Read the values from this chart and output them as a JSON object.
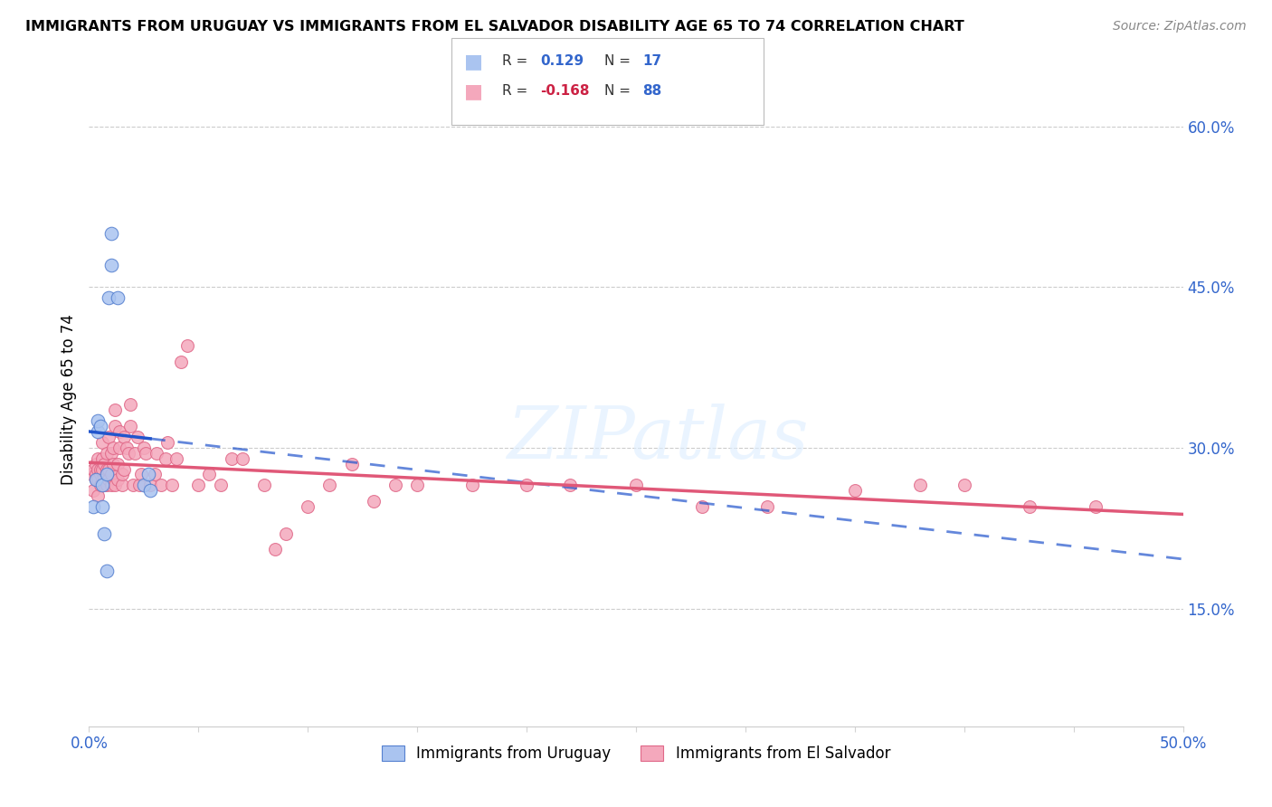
{
  "title": "IMMIGRANTS FROM URUGUAY VS IMMIGRANTS FROM EL SALVADOR DISABILITY AGE 65 TO 74 CORRELATION CHART",
  "source": "Source: ZipAtlas.com",
  "ylabel": "Disability Age 65 to 74",
  "xlim": [
    0.0,
    0.5
  ],
  "ylim": [
    0.04,
    0.65
  ],
  "xtick_vals": [
    0.0,
    0.05,
    0.1,
    0.15,
    0.2,
    0.25,
    0.3,
    0.35,
    0.4,
    0.45,
    0.5
  ],
  "xtick_labels": [
    "0.0%",
    "",
    "",
    "",
    "",
    "",
    "",
    "",
    "",
    "",
    "50.0%"
  ],
  "ytick_vals": [
    0.15,
    0.3,
    0.45,
    0.6
  ],
  "ytick_labels": [
    "15.0%",
    "30.0%",
    "45.0%",
    "60.0%"
  ],
  "uruguay_color": "#aac4f0",
  "el_salvador_color": "#f4a8bc",
  "uruguay_edge_color": "#5580d0",
  "el_salvador_edge_color": "#e06888",
  "uruguay_line_color": "#2255cc",
  "el_salvador_line_color": "#e05878",
  "watermark": "ZIPatlas",
  "legend_R_uruguay": "0.129",
  "legend_N_uruguay": "17",
  "legend_R_el_salvador": "-0.168",
  "legend_N_el_salvador": "88",
  "uruguay_x": [
    0.002,
    0.003,
    0.004,
    0.004,
    0.005,
    0.006,
    0.006,
    0.007,
    0.008,
    0.008,
    0.009,
    0.01,
    0.01,
    0.013,
    0.025,
    0.027,
    0.028
  ],
  "uruguay_y": [
    0.245,
    0.27,
    0.315,
    0.325,
    0.32,
    0.245,
    0.265,
    0.22,
    0.185,
    0.275,
    0.44,
    0.47,
    0.5,
    0.44,
    0.265,
    0.275,
    0.26
  ],
  "el_salvador_x": [
    0.001,
    0.002,
    0.002,
    0.003,
    0.003,
    0.003,
    0.004,
    0.004,
    0.004,
    0.004,
    0.005,
    0.005,
    0.005,
    0.006,
    0.006,
    0.006,
    0.006,
    0.007,
    0.007,
    0.007,
    0.008,
    0.008,
    0.008,
    0.009,
    0.009,
    0.009,
    0.01,
    0.01,
    0.01,
    0.011,
    0.011,
    0.012,
    0.012,
    0.012,
    0.013,
    0.013,
    0.014,
    0.014,
    0.015,
    0.015,
    0.016,
    0.016,
    0.017,
    0.018,
    0.019,
    0.019,
    0.02,
    0.021,
    0.022,
    0.023,
    0.024,
    0.025,
    0.026,
    0.028,
    0.03,
    0.031,
    0.033,
    0.035,
    0.036,
    0.038,
    0.04,
    0.042,
    0.045,
    0.05,
    0.055,
    0.06,
    0.065,
    0.07,
    0.08,
    0.085,
    0.09,
    0.1,
    0.11,
    0.12,
    0.13,
    0.14,
    0.15,
    0.175,
    0.2,
    0.22,
    0.25,
    0.28,
    0.31,
    0.35,
    0.38,
    0.4,
    0.43,
    0.46
  ],
  "el_salvador_y": [
    0.275,
    0.26,
    0.28,
    0.27,
    0.275,
    0.285,
    0.255,
    0.27,
    0.28,
    0.29,
    0.265,
    0.275,
    0.28,
    0.27,
    0.28,
    0.29,
    0.305,
    0.265,
    0.27,
    0.285,
    0.265,
    0.28,
    0.295,
    0.27,
    0.28,
    0.31,
    0.265,
    0.275,
    0.295,
    0.285,
    0.3,
    0.265,
    0.32,
    0.335,
    0.27,
    0.285,
    0.3,
    0.315,
    0.265,
    0.275,
    0.28,
    0.31,
    0.3,
    0.295,
    0.32,
    0.34,
    0.265,
    0.295,
    0.31,
    0.265,
    0.275,
    0.3,
    0.295,
    0.265,
    0.275,
    0.295,
    0.265,
    0.29,
    0.305,
    0.265,
    0.29,
    0.38,
    0.395,
    0.265,
    0.275,
    0.265,
    0.29,
    0.29,
    0.265,
    0.205,
    0.22,
    0.245,
    0.265,
    0.285,
    0.25,
    0.265,
    0.265,
    0.265,
    0.265,
    0.265,
    0.265,
    0.245,
    0.245,
    0.26,
    0.265,
    0.265,
    0.245,
    0.245
  ]
}
